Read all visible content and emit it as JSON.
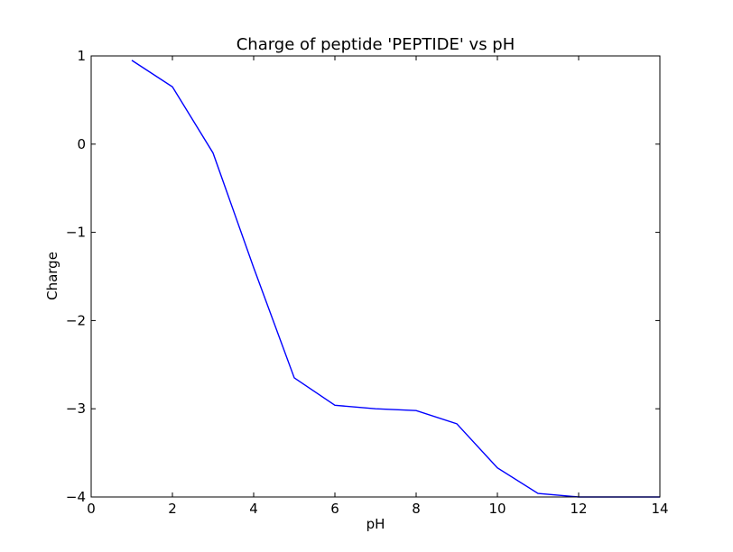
{
  "chart_data": {
    "type": "line",
    "title": "Charge of peptide 'PEPTIDE' vs pH",
    "xlabel": "pH",
    "ylabel": "Charge",
    "xlim": [
      0,
      14
    ],
    "ylim": [
      -4,
      1
    ],
    "xticks": [
      0,
      2,
      4,
      6,
      8,
      10,
      12,
      14
    ],
    "yticks": [
      -4,
      -3,
      -2,
      -1,
      0,
      1
    ],
    "xtick_labels": [
      "0",
      "2",
      "4",
      "6",
      "8",
      "10",
      "12",
      "14"
    ],
    "ytick_labels": [
      "−4",
      "−3",
      "−2",
      "−1",
      "0",
      "1"
    ],
    "grid": false,
    "legend": false,
    "series": [
      {
        "color": "#0000ff",
        "x": [
          1,
          2,
          3,
          4,
          5,
          6,
          7,
          8,
          9,
          10,
          11,
          12,
          13,
          14
        ],
        "y": [
          0.95,
          0.65,
          -0.1,
          -1.4,
          -2.65,
          -2.96,
          -3.0,
          -3.02,
          -3.17,
          -3.67,
          -3.96,
          -4.0,
          -4.0,
          -4.0
        ]
      }
    ]
  }
}
